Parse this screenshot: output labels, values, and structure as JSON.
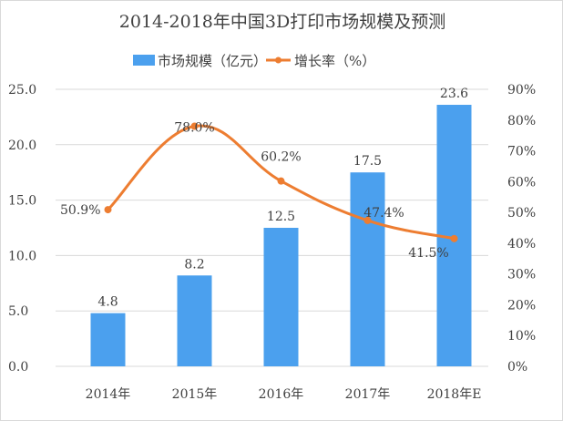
{
  "chart_data": {
    "type": "bar+line",
    "title": "2014-2018年中国3D打印市场规模及预测",
    "categories": [
      "2014年",
      "2015年",
      "2016年",
      "2017年",
      "2018年E"
    ],
    "series": [
      {
        "name": "市场规模（亿元）",
        "type": "bar",
        "axis": "left",
        "values": [
          4.8,
          8.2,
          12.5,
          17.5,
          23.6
        ],
        "labels": [
          "4.8",
          "8.2",
          "12.5",
          "17.5",
          "23.6"
        ],
        "color": "#4ba0ee"
      },
      {
        "name": "增长率（%）",
        "type": "line",
        "axis": "right",
        "values": [
          50.9,
          78.0,
          60.2,
          47.4,
          41.5
        ],
        "labels": [
          "50.9%",
          "78.0%",
          "60.2%",
          "47.4%",
          "41.5%"
        ],
        "color": "#ed7d31"
      }
    ],
    "y_left": {
      "range": [
        0,
        25
      ],
      "ticks": [
        "0.0",
        "5.0",
        "10.0",
        "15.0",
        "20.0",
        "25.0"
      ]
    },
    "y_right": {
      "range": [
        0,
        90
      ],
      "ticks": [
        "0%",
        "10%",
        "20%",
        "30%",
        "40%",
        "50%",
        "60%",
        "70%",
        "80%",
        "90%"
      ]
    },
    "grid": true,
    "legend": "top"
  }
}
